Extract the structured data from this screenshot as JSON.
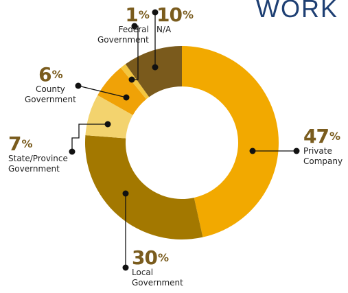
{
  "title": "WORK",
  "chart_data": {
    "type": "pie",
    "donut": true,
    "slices": [
      {
        "label_lines": [
          "Private",
          "Company"
        ],
        "value": 47,
        "color": "#f2a900"
      },
      {
        "label_lines": [
          "Local",
          "Government"
        ],
        "value": 30,
        "color": "#a37800"
      },
      {
        "label_lines": [
          "State/Province",
          "Government"
        ],
        "value": 7,
        "color": "#f3d36e"
      },
      {
        "label_lines": [
          "County",
          "Government"
        ],
        "value": 6,
        "color": "#f0a207"
      },
      {
        "label_lines": [
          "Federal",
          "Government"
        ],
        "value": 1,
        "color": "#f3c640"
      },
      {
        "label_lines": [
          "N/A"
        ],
        "value": 10,
        "color": "#7a5a1c"
      }
    ],
    "percent_symbol": "%"
  }
}
